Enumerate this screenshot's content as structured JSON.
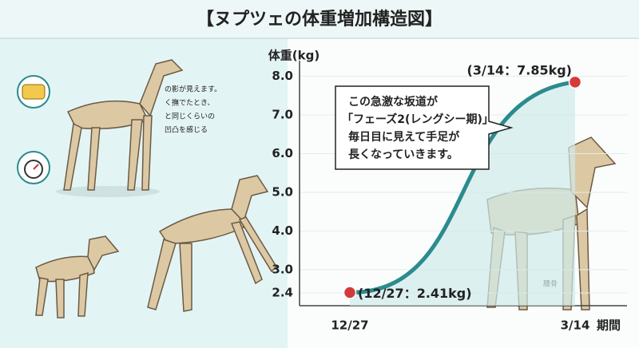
{
  "title": "【ヌプツェの体重増加構造図】",
  "notes": [
    "の影が見えます。",
    "く撫でたとき、",
    "と同じくらいの",
    "凹凸を感じる"
  ],
  "dog_label": "腰骨",
  "chart_data": {
    "type": "line",
    "ylabel": "体重(kg)",
    "xlabel": "期間",
    "categories": [
      "12/27",
      "3/14"
    ],
    "values": [
      2.41,
      7.85
    ],
    "value_labels": [
      "(12/27：2.41kg)",
      "(3/14：7.85kg)"
    ],
    "color": "#2b8b8e",
    "point_color": "#d33b3b",
    "ylim": [
      2.07,
      8.3
    ],
    "yticks": [
      2.4,
      {
        "value": 3,
        "label": "3.0"
      },
      {
        "value": 4,
        "label": "4.0"
      },
      {
        "value": 5,
        "label": "5.0"
      },
      {
        "value": 6,
        "label": "6.0"
      },
      {
        "value": 7,
        "label": "7.0"
      },
      {
        "value": 8,
        "label": "8.0"
      }
    ],
    "grid": true,
    "annotation": [
      "この急激な坂道が",
      "「フェーズ2(レングシー期)」",
      "毎日目に見えて手足が",
      "長くなっていきます。"
    ]
  }
}
